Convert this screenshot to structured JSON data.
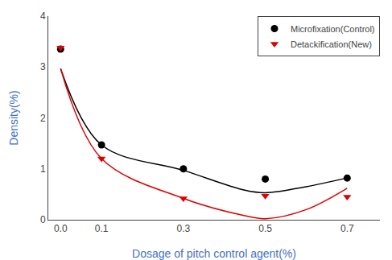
{
  "chart_data": {
    "type": "scatter",
    "xlabel": "Dosage of pitch control agent(%)",
    "ylabel": "Density(%)",
    "xlim": [
      -0.03,
      0.78
    ],
    "ylim": [
      0,
      4
    ],
    "xticks": [
      {
        "value": 0.0,
        "label": "0.0"
      },
      0.1,
      0.3,
      0.5,
      0.7
    ],
    "yticks": [
      0,
      1,
      2,
      3,
      4
    ],
    "grid": false,
    "legend": "upper right",
    "series": [
      {
        "name": "Microfixation(Control)",
        "color": "#000000",
        "marker": "circle",
        "x": [
          0.0,
          0.1,
          0.3,
          0.5,
          0.7
        ],
        "values": [
          3.35,
          1.47,
          1.0,
          0.8,
          0.82
        ],
        "curve": {
          "x": [
            0.0,
            0.1,
            0.3,
            0.45,
            0.5,
            0.6,
            0.7
          ],
          "values": [
            2.97,
            1.47,
            0.97,
            0.58,
            0.53,
            0.65,
            0.82
          ]
        }
      },
      {
        "name": "Detackification(New)",
        "color": "#dd0000",
        "marker": "triangle-down",
        "x": [
          0.0,
          0.1,
          0.3,
          0.5,
          0.7
        ],
        "values": [
          3.38,
          1.2,
          0.42,
          0.47,
          0.45
        ],
        "curve": {
          "x": [
            0.0,
            0.1,
            0.3,
            0.45,
            0.5,
            0.6,
            0.7
          ],
          "values": [
            2.97,
            1.2,
            0.42,
            0.08,
            0.02,
            0.2,
            0.62
          ]
        }
      }
    ]
  }
}
